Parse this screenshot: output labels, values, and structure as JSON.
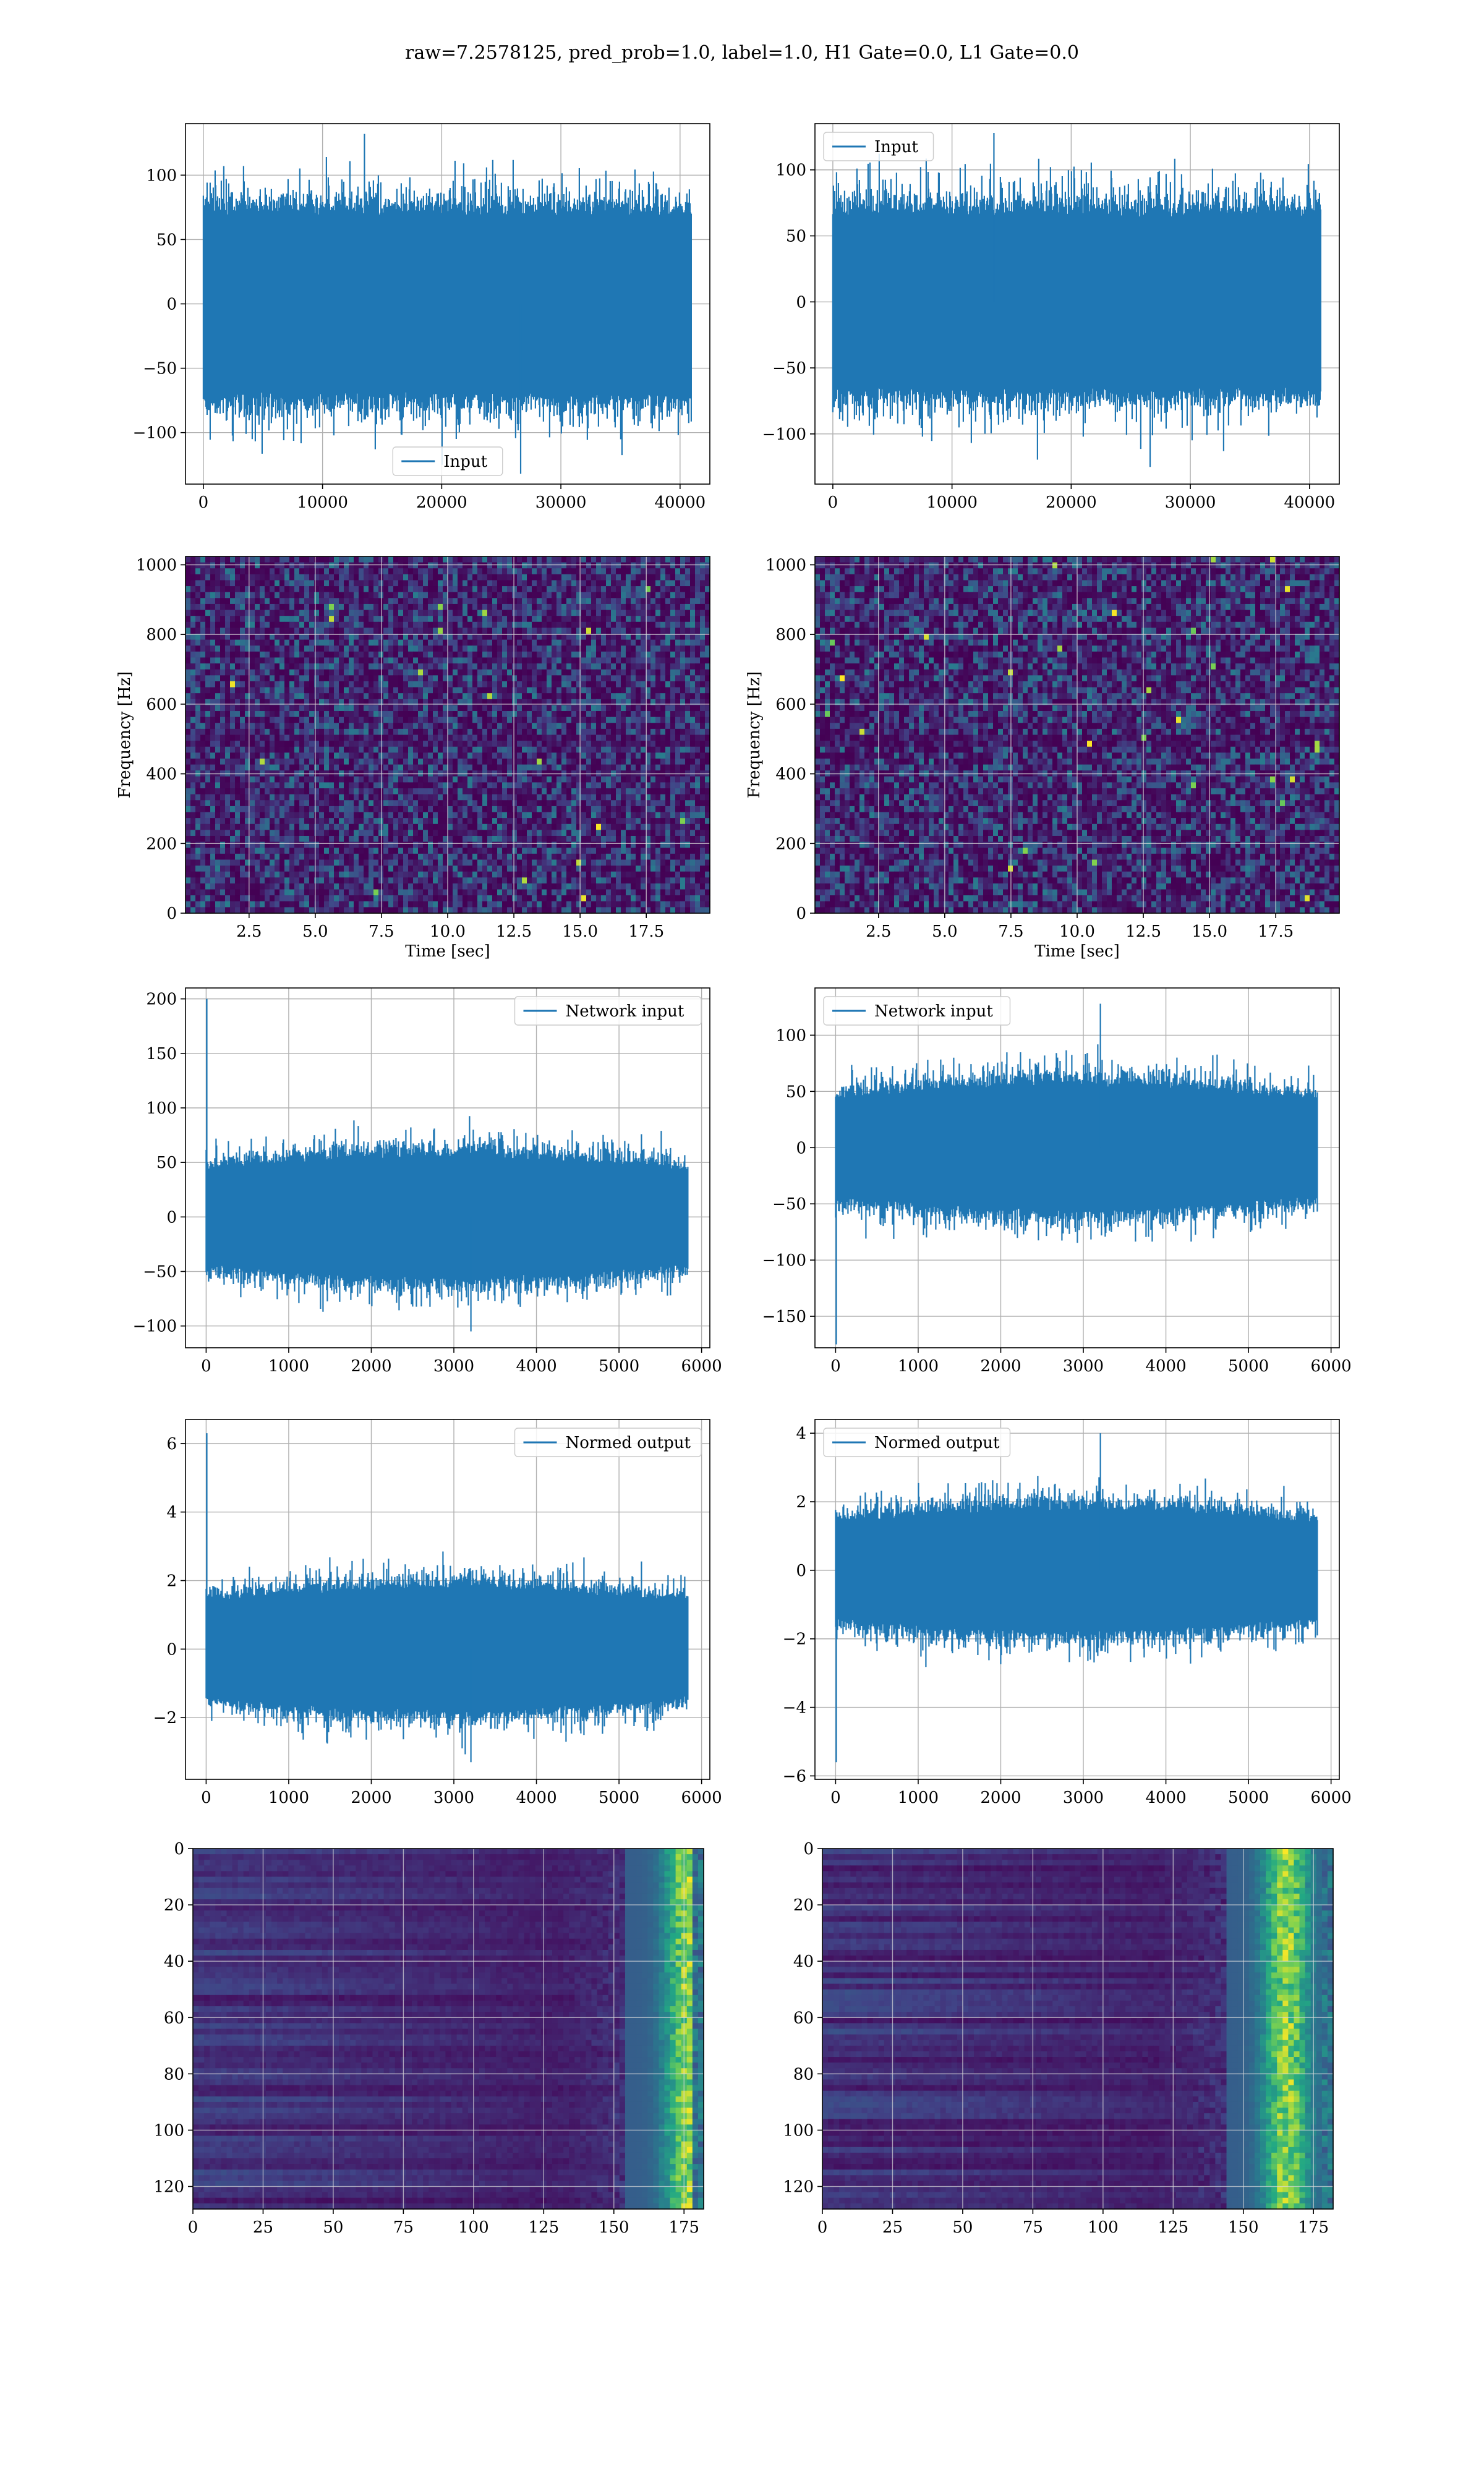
{
  "figure": {
    "title": "raw=7.2578125, pred_prob=1.0, label=1.0, H1 Gate=0.0, L1 Gate=0.0",
    "colors": {
      "line": "#1f77b4",
      "grid": "#b0b0b0",
      "viridis_low": "#440154",
      "viridis_high": "#fde725"
    }
  },
  "chart_data": [
    {
      "id": "h1-input",
      "type": "line",
      "title": "",
      "xlabel": "",
      "ylabel": "",
      "xlim": [
        -1500,
        42500
      ],
      "ylim": [
        -140,
        140
      ],
      "xticks": [
        0,
        10000,
        20000,
        30000,
        40000
      ],
      "yticks": [
        -100,
        -50,
        0,
        50,
        100
      ],
      "legend": "lower center",
      "grid": true,
      "series": [
        {
          "name": "Input",
          "n": 40960,
          "typical_band": [
            -72,
            72
          ],
          "peaks": [
            132,
            -132
          ]
        }
      ]
    },
    {
      "id": "l1-input",
      "type": "line",
      "title": "",
      "xlabel": "",
      "ylabel": "",
      "xlim": [
        -1500,
        42500
      ],
      "ylim": [
        -138,
        135
      ],
      "xticks": [
        0,
        10000,
        20000,
        30000,
        40000
      ],
      "yticks": [
        -100,
        -50,
        0,
        50,
        100
      ],
      "legend": "upper left",
      "grid": true,
      "series": [
        {
          "name": "Input",
          "n": 40960,
          "typical_band": [
            -68,
            68
          ],
          "peaks": [
            128,
            -125
          ]
        }
      ]
    },
    {
      "id": "h1-spectrogram",
      "type": "heatmap",
      "title": "",
      "xlabel": "Time [sec]",
      "ylabel": "Frequency [Hz]",
      "xlim": [
        0.1,
        19.9
      ],
      "ylim": [
        0,
        1024
      ],
      "xticks": [
        2.5,
        5.0,
        7.5,
        10.0,
        12.5,
        15.0,
        17.5
      ],
      "yticks": [
        0,
        200,
        400,
        600,
        800,
        1000
      ],
      "colormap": "viridis",
      "grid": true
    },
    {
      "id": "l1-spectrogram",
      "type": "heatmap",
      "title": "",
      "xlabel": "Time [sec]",
      "ylabel": "Frequency [Hz]",
      "xlim": [
        0.1,
        19.9
      ],
      "ylim": [
        0,
        1024
      ],
      "xticks": [
        2.5,
        5.0,
        7.5,
        10.0,
        12.5,
        15.0,
        17.5
      ],
      "yticks": [
        0,
        200,
        400,
        600,
        800,
        1000
      ],
      "colormap": "viridis",
      "grid": true
    },
    {
      "id": "h1-network-input",
      "type": "line",
      "title": "",
      "xlabel": "",
      "ylabel": "",
      "xlim": [
        -250,
        6100
      ],
      "ylim": [
        -120,
        210
      ],
      "xticks": [
        0,
        1000,
        2000,
        3000,
        4000,
        5000,
        6000
      ],
      "yticks": [
        -100,
        -50,
        0,
        50,
        100,
        150,
        200
      ],
      "legend": "upper right",
      "grid": true,
      "series": [
        {
          "name": "Network input",
          "n": 5830,
          "typical_band": [
            -50,
            50
          ],
          "peaks": [
            200,
            -105
          ]
        }
      ]
    },
    {
      "id": "l1-network-input",
      "type": "line",
      "title": "",
      "xlabel": "",
      "ylabel": "",
      "xlim": [
        -250,
        6100
      ],
      "ylim": [
        -178,
        142
      ],
      "xticks": [
        0,
        1000,
        2000,
        3000,
        4000,
        5000,
        6000
      ],
      "yticks": [
        -150,
        -100,
        -50,
        0,
        50,
        100
      ],
      "legend": "upper left",
      "grid": true,
      "series": [
        {
          "name": "Network input",
          "n": 5830,
          "typical_band": [
            -50,
            50
          ],
          "peaks": [
            128,
            -175
          ]
        }
      ]
    },
    {
      "id": "h1-normed-output",
      "type": "line",
      "title": "",
      "xlabel": "",
      "ylabel": "",
      "xlim": [
        -250,
        6100
      ],
      "ylim": [
        -3.8,
        6.7
      ],
      "xticks": [
        0,
        1000,
        2000,
        3000,
        4000,
        5000,
        6000
      ],
      "yticks": [
        -2,
        0,
        2,
        4,
        6
      ],
      "legend": "upper right",
      "grid": true,
      "series": [
        {
          "name": "Normed output",
          "n": 5830,
          "typical_band": [
            -1.6,
            1.6
          ],
          "peaks": [
            6.3,
            -3.3
          ]
        }
      ]
    },
    {
      "id": "l1-normed-output",
      "type": "line",
      "title": "",
      "xlabel": "",
      "ylabel": "",
      "xlim": [
        -250,
        6100
      ],
      "ylim": [
        -6.1,
        4.4
      ],
      "xticks": [
        0,
        1000,
        2000,
        3000,
        4000,
        5000,
        6000
      ],
      "yticks": [
        -6,
        -4,
        -2,
        0,
        2,
        4
      ],
      "legend": "upper left",
      "grid": true,
      "series": [
        {
          "name": "Normed output",
          "n": 5830,
          "typical_band": [
            -1.6,
            1.6
          ],
          "peaks": [
            4.0,
            -5.6
          ]
        }
      ]
    },
    {
      "id": "h1-feature-map",
      "type": "heatmap",
      "title": "",
      "xlabel": "",
      "ylabel": "",
      "xlim": [
        0,
        182
      ],
      "ylim": [
        128,
        0
      ],
      "xticks": [
        0,
        25,
        50,
        75,
        100,
        125,
        150,
        175
      ],
      "yticks": [
        0,
        20,
        40,
        60,
        80,
        100,
        120
      ],
      "colormap": "viridis",
      "grid": true,
      "hot_columns": [
        155,
        182
      ]
    },
    {
      "id": "l1-feature-map",
      "type": "heatmap",
      "title": "",
      "xlabel": "",
      "ylabel": "",
      "xlim": [
        0,
        182
      ],
      "ylim": [
        128,
        0
      ],
      "xticks": [
        0,
        25,
        50,
        75,
        100,
        125,
        150,
        175
      ],
      "yticks": [
        0,
        20,
        40,
        60,
        80,
        100,
        120
      ],
      "colormap": "viridis",
      "grid": true,
      "hot_columns": [
        145,
        182
      ]
    }
  ]
}
